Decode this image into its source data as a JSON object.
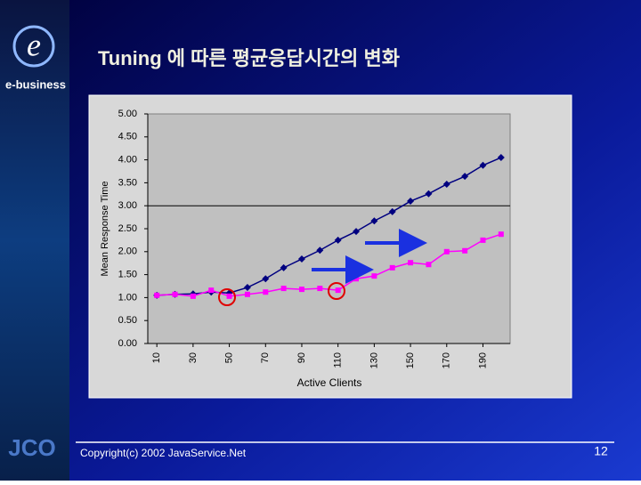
{
  "slide": {
    "brand": "e-business",
    "logo": "JCO",
    "copyright": "Copyright(c) 2002 JavaService.Net",
    "page": "12"
  },
  "chart_data": {
    "type": "line",
    "title": "Tuning 에 따른 평균응답시간의 변화",
    "xlabel": "Active Clients",
    "ylabel": "Mean Response Time",
    "x": [
      10,
      20,
      30,
      40,
      50,
      60,
      70,
      80,
      90,
      100,
      110,
      120,
      130,
      140,
      150,
      160,
      170,
      180,
      190,
      200
    ],
    "series": [
      {
        "color": "#000080",
        "marker": "diamond",
        "values": [
          1.05,
          1.07,
          1.08,
          1.12,
          1.1,
          1.22,
          1.41,
          1.65,
          1.84,
          2.03,
          2.25,
          2.44,
          2.67,
          2.87,
          3.1,
          3.26,
          3.47,
          3.64,
          3.88,
          4.05
        ]
      },
      {
        "color": "#ff00ff",
        "marker": "square",
        "values": [
          1.05,
          1.07,
          1.03,
          1.16,
          1.03,
          1.07,
          1.12,
          1.2,
          1.18,
          1.2,
          1.16,
          1.41,
          1.47,
          1.65,
          1.76,
          1.72,
          2.0,
          2.02,
          2.25,
          2.38
        ]
      }
    ],
    "xlim": [
      5,
      205
    ],
    "xticks": [
      10,
      30,
      50,
      70,
      90,
      110,
      130,
      150,
      170,
      190
    ],
    "ylim": [
      0,
      5
    ],
    "yticks": [
      {
        "value": 0,
        "label": "0.00"
      },
      {
        "value": 0.5,
        "label": "0.50"
      },
      {
        "value": 1,
        "label": "1.00"
      },
      {
        "value": 1.5,
        "label": "1.50"
      },
      {
        "value": 2,
        "label": "2.00"
      },
      {
        "value": 2.5,
        "label": "2.50"
      },
      {
        "value": 3,
        "label": "3.00"
      },
      {
        "value": 3.5,
        "label": "3.50"
      },
      {
        "value": 4,
        "label": "4.00"
      },
      {
        "value": 4.5,
        "label": "4.50"
      },
      {
        "value": 5,
        "label": "5.00"
      }
    ],
    "hline": 3
  }
}
